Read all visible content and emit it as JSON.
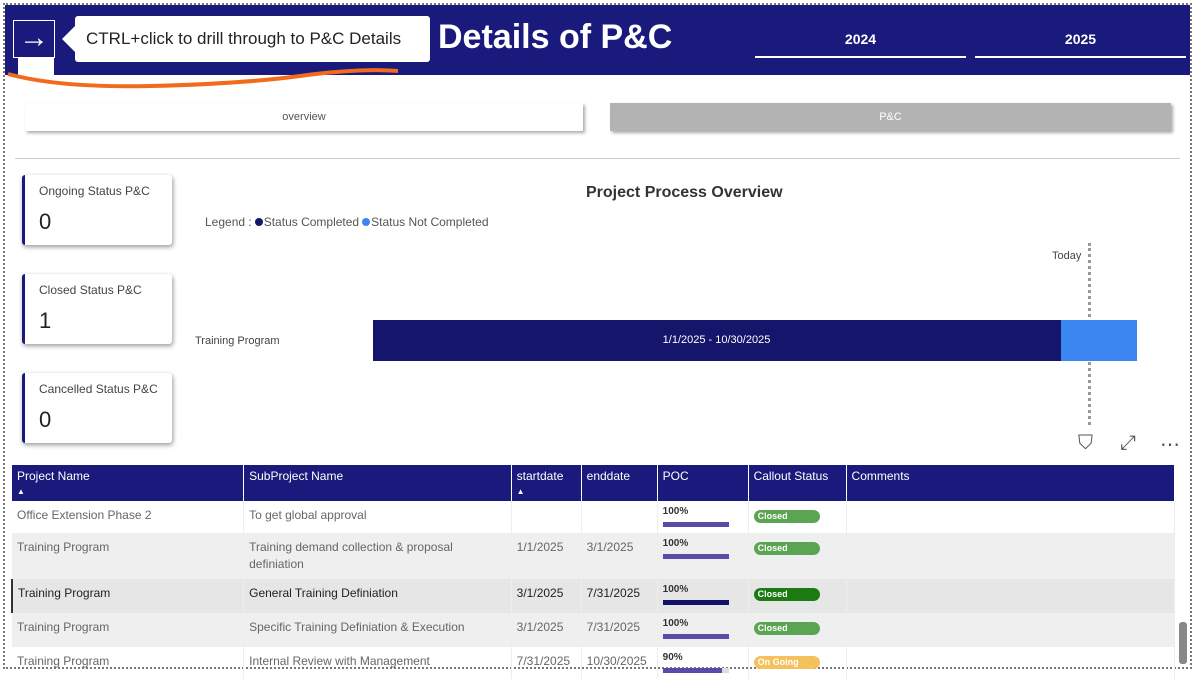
{
  "header": {
    "title": "Details of P&C",
    "tooltip": "CTRL+click to drill through to P&C Details",
    "back_icon": "arrow-right-icon",
    "years": [
      "2024",
      "2025"
    ]
  },
  "tabs": [
    "overview",
    "P&C"
  ],
  "cards": [
    {
      "label": "Ongoing Status P&C",
      "value": "0"
    },
    {
      "label": "Closed Status P&C",
      "value": "1"
    },
    {
      "label": "Cancelled Status P&C",
      "value": "0"
    }
  ],
  "chart": {
    "title": "Project Process Overview",
    "legend_prefix": "Legend :",
    "legend": [
      {
        "label": "Status Completed",
        "color": "#15156b"
      },
      {
        "label": "Status Not Completed",
        "color": "#3b86f0"
      }
    ],
    "today_label": "Today",
    "row_label": "Training Program",
    "bar_label": "1/1/2025  -  10/30/2025",
    "completed_fraction": 0.9
  },
  "chart_data": {
    "type": "gantt",
    "title": "Project Process Overview",
    "tasks": [
      {
        "name": "Training Program",
        "start": "1/1/2025",
        "end": "10/30/2025",
        "completed": 0.9
      }
    ],
    "today_marker": true
  },
  "table": {
    "columns": [
      "Project Name",
      "SubProject Name",
      "startdate",
      "enddate",
      "POC",
      "Callout Status",
      "Comments"
    ],
    "rows": [
      {
        "project": "Office Extension Phase 2",
        "sub": "To get global approval",
        "start": "",
        "end": "",
        "poc": "100%",
        "poc_value": 100,
        "status": "Closed",
        "status_color": "#5aa552"
      },
      {
        "project": "Training Program",
        "sub": "Training demand collection & proposal definiation",
        "start": "1/1/2025",
        "end": "3/1/2025",
        "poc": "100%",
        "poc_value": 100,
        "status": "Closed",
        "status_color": "#5aa552"
      },
      {
        "project": "Training Program",
        "sub": "General Training Definiation",
        "start": "3/1/2025",
        "end": "7/31/2025",
        "poc": "100%",
        "poc_value": 100,
        "status": "Closed",
        "status_color": "#1b7a12"
      },
      {
        "project": "Training Program",
        "sub": "Specific Training Definiation & Execution",
        "start": "3/1/2025",
        "end": "7/31/2025",
        "poc": "100%",
        "poc_value": 100,
        "status": "Closed",
        "status_color": "#5aa552"
      },
      {
        "project": "Training Program",
        "sub": "Internal Review with Management",
        "start": "7/31/2025",
        "end": "10/30/2025",
        "poc": "90%",
        "poc_value": 90,
        "status": "On Going",
        "status_color": "#f5c15c"
      }
    ]
  }
}
